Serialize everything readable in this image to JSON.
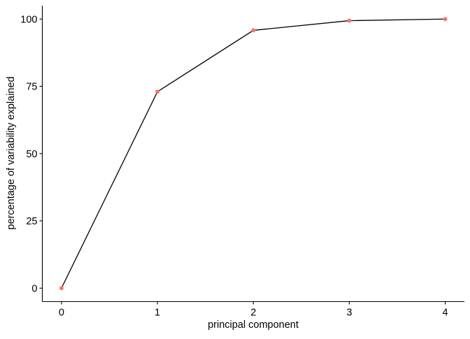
{
  "chart_data": {
    "type": "line",
    "title": "",
    "xlabel": "principal component",
    "ylabel": "percentage of variability explained",
    "x": [
      0,
      1,
      2,
      3,
      4
    ],
    "series": [
      {
        "values": [
          0,
          73,
          95.8,
          99.4,
          100
        ]
      }
    ],
    "xlim": [
      -0.2,
      4.2
    ],
    "ylim": [
      -5,
      105
    ],
    "xticks": [
      "0",
      "1",
      "2",
      "3",
      "4"
    ],
    "yticks": [
      "0",
      "25",
      "50",
      "75",
      "100"
    ],
    "grid": false,
    "legend": "none",
    "colors": {
      "line": "#000000",
      "point": "#F8766D",
      "axis": "#000000"
    }
  }
}
